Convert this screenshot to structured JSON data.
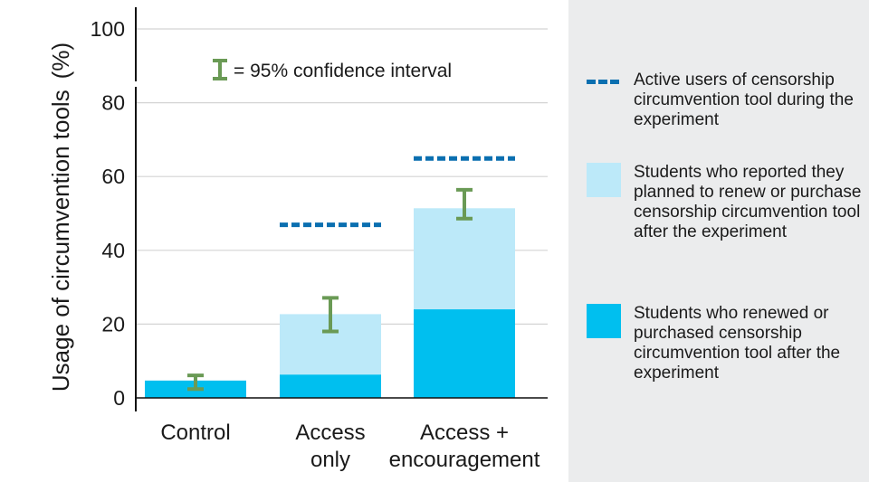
{
  "chart_data": {
    "type": "bar",
    "ylabel": "Usage of circumvention tools",
    "ylabel_unit": "(%)",
    "ylim": [
      0,
      100
    ],
    "yticks": [
      0,
      20,
      40,
      60,
      80,
      100
    ],
    "grid": true,
    "categories": [
      {
        "lines": [
          "Control"
        ]
      },
      {
        "lines": [
          "Access",
          "only"
        ]
      },
      {
        "lines": [
          "Access +",
          "encouragement"
        ]
      }
    ],
    "series": [
      {
        "name": "Students who renewed or purchased censorship circumvention tool after the experiment",
        "values": [
          4.7,
          6.3,
          24
        ]
      },
      {
        "name": "Students who reported they planned to renew or purchase censorship circumvention tool after the experiment",
        "values": [
          0,
          22.7,
          51.4
        ]
      },
      {
        "name": "Active users of censorship circumvention tool during the experiment",
        "values": [
          null,
          46.9,
          64.9
        ]
      }
    ],
    "error_bars": [
      [
        2.4,
        6.1
      ],
      [
        18,
        27.1
      ],
      [
        48.6,
        56.4
      ]
    ],
    "annotation": "= 95% confidence interval",
    "legend_position": "right"
  },
  "colors": {
    "renewed": "#00bfef",
    "planned": "#bce9f9",
    "active": "#0a6fb0",
    "error": "#6a9a55",
    "grid": "#d4d4d4",
    "axis": "#111111",
    "legend_bg": "#ebeced"
  },
  "legend": [
    {
      "type": "dash",
      "color": "#0a6fb0",
      "text": "Active users of censorship circumvention tool during the experiment"
    },
    {
      "type": "box",
      "color": "#bce9f9",
      "text": "Students who reported they planned to renew or purchase censorship circumvention tool after the experiment"
    },
    {
      "type": "box",
      "color": "#00bfef",
      "text": "Students who renewed or purchased censorship circumvention tool after the experiment"
    }
  ]
}
